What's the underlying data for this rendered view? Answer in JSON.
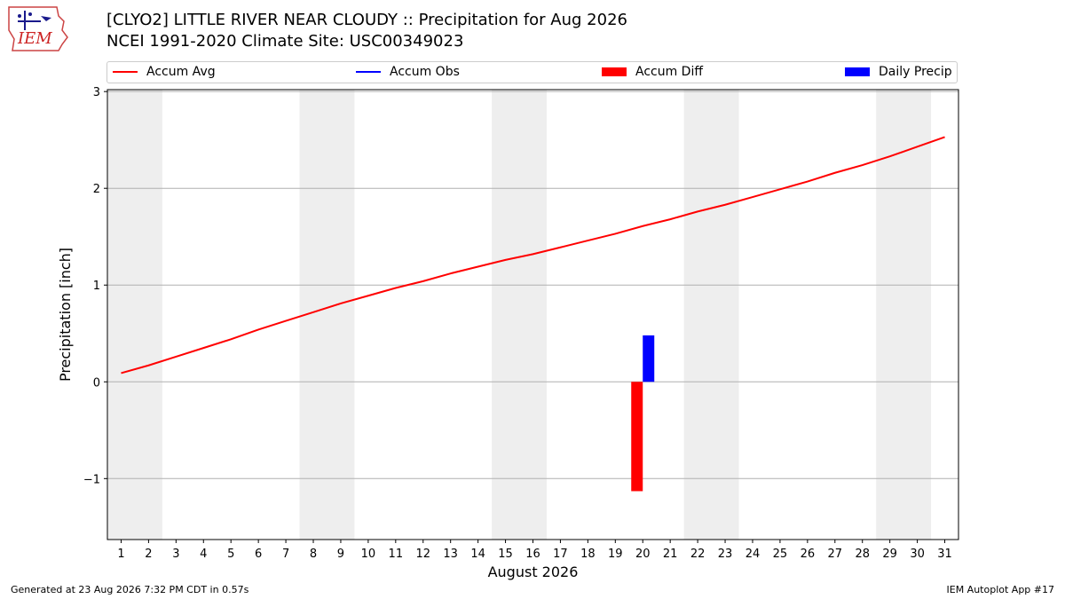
{
  "header": {
    "title": "[CLYO2] LITTLE RIVER NEAR CLOUDY :: Precipitation for Aug 2026",
    "subtitle": "NCEI 1991-2020 Climate Site: USC00349023",
    "logo_text": "IEM"
  },
  "legend": {
    "placement": "top, spanning plot width",
    "items": [
      {
        "label": "Accum Avg",
        "kind": "line",
        "color": "#ff0000"
      },
      {
        "label": "Accum Obs",
        "kind": "line",
        "color": "#0000ff"
      },
      {
        "label": "Accum Diff",
        "kind": "box",
        "color": "#ff0000"
      },
      {
        "label": "Daily Precip",
        "kind": "box",
        "color": "#0000ff"
      }
    ]
  },
  "footer": {
    "left": "Generated at 23 Aug 2026 7:32 PM CDT in 0.57s",
    "right": "IEM Autoplot App #17"
  },
  "chart_data": {
    "type": "line",
    "title": "[CLYO2] LITTLE RIVER NEAR CLOUDY :: Precipitation for Aug 2026",
    "subtitle": "NCEI 1991-2020 Climate Site: USC00349023",
    "xlabel": "August 2026",
    "ylabel": "Precipitation [inch]",
    "xlim": [
      0.5,
      31.5
    ],
    "ylim": [
      -1.63,
      3.02
    ],
    "x_ticks": [
      1,
      2,
      3,
      4,
      5,
      6,
      7,
      8,
      9,
      10,
      11,
      12,
      13,
      14,
      15,
      16,
      17,
      18,
      19,
      20,
      21,
      22,
      23,
      24,
      25,
      26,
      27,
      28,
      29,
      30,
      31
    ],
    "y_ticks": [
      -1,
      0,
      1,
      2,
      3
    ],
    "y_tick_labels": [
      "−1",
      "0",
      "1",
      "2",
      "3"
    ],
    "grid": "horizontal",
    "weekend_shading": [
      [
        0.5,
        2.5
      ],
      [
        7.5,
        9.5
      ],
      [
        14.5,
        16.5
      ],
      [
        21.5,
        23.5
      ],
      [
        28.5,
        30.5
      ]
    ],
    "shading_color": "#eeeeee",
    "series": [
      {
        "name": "Accum Avg",
        "kind": "line",
        "color": "#ff0000",
        "x": [
          1,
          2,
          3,
          4,
          5,
          6,
          7,
          8,
          9,
          10,
          11,
          12,
          13,
          14,
          15,
          16,
          17,
          18,
          19,
          20,
          21,
          22,
          23,
          24,
          25,
          26,
          27,
          28,
          29,
          30,
          31
        ],
        "values": [
          0.09,
          0.17,
          0.26,
          0.35,
          0.44,
          0.54,
          0.63,
          0.72,
          0.81,
          0.89,
          0.97,
          1.04,
          1.12,
          1.19,
          1.26,
          1.32,
          1.39,
          1.46,
          1.53,
          1.61,
          1.68,
          1.76,
          1.83,
          1.91,
          1.99,
          2.07,
          2.16,
          2.24,
          2.33,
          2.43,
          2.53
        ]
      },
      {
        "name": "Accum Obs",
        "kind": "line",
        "color": "#0000ff",
        "x": [],
        "values": []
      },
      {
        "name": "Accum Diff",
        "kind": "bar",
        "color": "#ff0000",
        "x": [
          20
        ],
        "values": [
          -1.13
        ]
      },
      {
        "name": "Daily Precip",
        "kind": "bar",
        "color": "#0000ff",
        "x": [
          20
        ],
        "values": [
          0.48
        ]
      }
    ]
  }
}
